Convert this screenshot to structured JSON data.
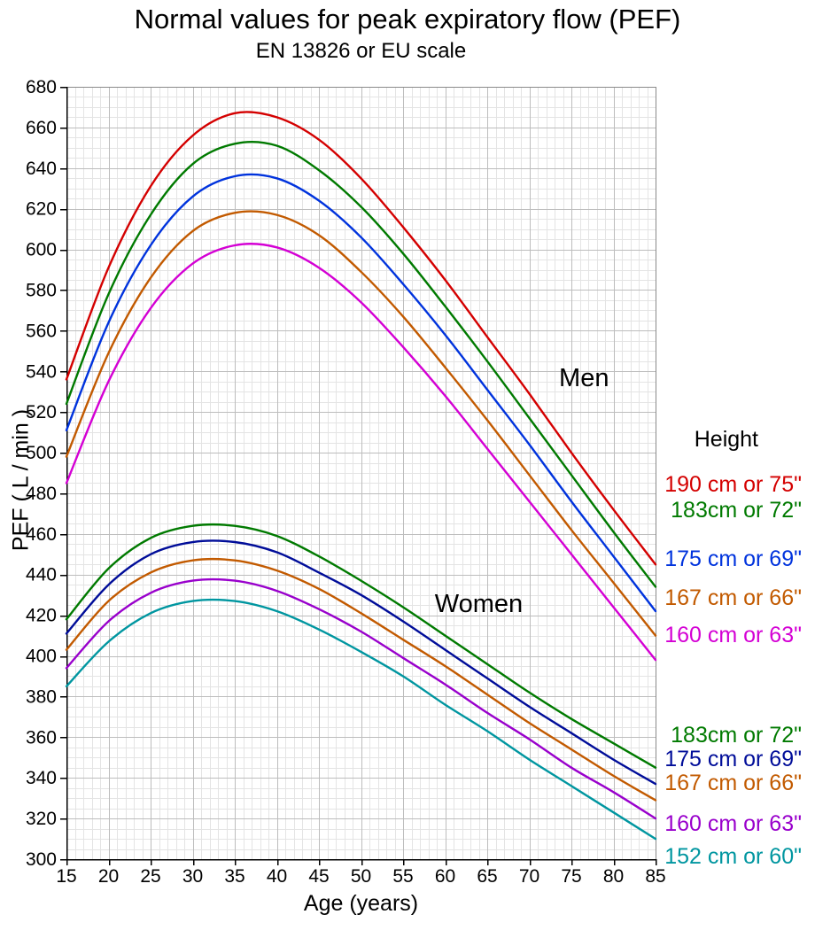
{
  "title": "Normal values for peak expiratory flow (PEF)",
  "subtitle": "EN 13826 or EU scale",
  "xlabel": "Age (years)",
  "ylabel": "PEF ( L / min )",
  "legend": {
    "header": "Height"
  },
  "chart_data": {
    "type": "line",
    "title": "Normal values for peak expiratory flow (PEF)",
    "subtitle": "EN 13826 or EU scale",
    "xlabel": "Age (years)",
    "ylabel": "PEF ( L / min )",
    "xlim": [
      15,
      85
    ],
    "ylim": [
      300,
      680
    ],
    "xtick": 5,
    "ytick": 20,
    "xminor": 1,
    "yminor": 5,
    "grid": true,
    "legend_position": "right",
    "x": [
      15,
      20,
      25,
      30,
      35,
      40,
      45,
      50,
      55,
      60,
      65,
      70,
      75,
      80,
      85
    ],
    "series": [
      {
        "name": "men-190",
        "group": "men",
        "label": "190 cm or 75\"",
        "color": "#d40000",
        "values": [
          536,
          591,
          631,
          656,
          667,
          665,
          654,
          635,
          611,
          585,
          557,
          529,
          500,
          472,
          445
        ]
      },
      {
        "name": "men-183",
        "group": "men",
        "label": "183cm or 72\"",
        "color": "#007a00",
        "values": [
          524,
          578,
          617,
          642,
          652,
          651,
          639,
          621,
          598,
          572,
          545,
          517,
          489,
          461,
          434
        ]
      },
      {
        "name": "men-175",
        "group": "men",
        "label": "175 cm or 69\"",
        "color": "#0033dd",
        "values": [
          511,
          564,
          602,
          626,
          636,
          635,
          624,
          606,
          583,
          558,
          531,
          504,
          476,
          449,
          422
        ]
      },
      {
        "name": "men-167",
        "group": "men",
        "label": "167 cm or 66\"",
        "color": "#c25a00",
        "values": [
          498,
          549,
          586,
          609,
          618,
          617,
          607,
          589,
          567,
          542,
          516,
          489,
          462,
          436,
          410
        ]
      },
      {
        "name": "men-160",
        "group": "men",
        "label": "160 cm or 63\"",
        "color": "#d400d4",
        "values": [
          485,
          535,
          571,
          593,
          602,
          601,
          591,
          574,
          552,
          528,
          502,
          476,
          450,
          424,
          398
        ]
      },
      {
        "name": "women-183",
        "group": "women",
        "label": "183cm or 72\"",
        "color": "#007a00",
        "values": [
          418,
          443,
          458,
          464,
          464,
          459,
          449,
          437,
          424,
          410,
          396,
          382,
          369,
          357,
          345
        ]
      },
      {
        "name": "women-175",
        "group": "women",
        "label": "175 cm or 69\"",
        "color": "#000d99",
        "values": [
          411,
          435,
          450,
          456,
          456,
          451,
          441,
          430,
          417,
          403,
          389,
          375,
          362,
          349,
          337
        ]
      },
      {
        "name": "women-167",
        "group": "women",
        "label": "167 cm or 66\"",
        "color": "#c25a00",
        "values": [
          403,
          427,
          441,
          447,
          447,
          442,
          433,
          421,
          408,
          395,
          381,
          367,
          354,
          341,
          329
        ]
      },
      {
        "name": "women-160",
        "group": "women",
        "label": "160 cm or 63\"",
        "color": "#9900cc",
        "values": [
          394,
          417,
          431,
          437,
          437,
          432,
          423,
          412,
          399,
          386,
          372,
          359,
          345,
          333,
          320
        ]
      },
      {
        "name": "women-152",
        "group": "women",
        "label": "152 cm or 60\"",
        "color": "#0096a0",
        "values": [
          385,
          407,
          421,
          427,
          427,
          422,
          413,
          402,
          390,
          376,
          363,
          349,
          336,
          323,
          310
        ]
      }
    ],
    "annotations": [
      {
        "text": "Men",
        "age": 76.5,
        "pef": 537
      },
      {
        "text": "Women",
        "age": 64,
        "pef": 426
      }
    ]
  }
}
